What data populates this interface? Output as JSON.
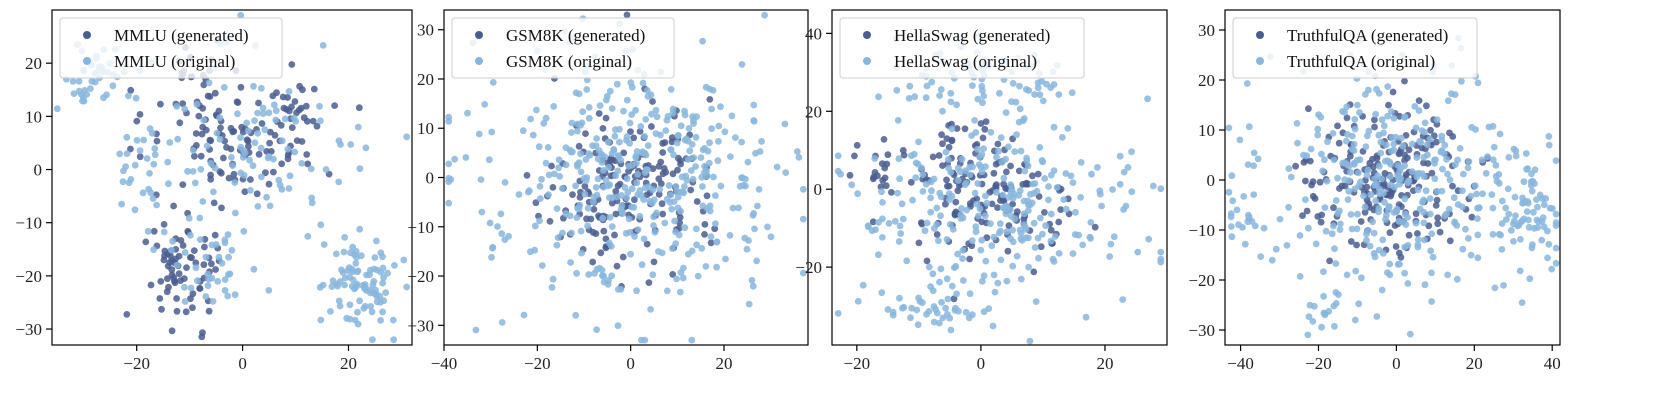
{
  "colors": {
    "generated": "#4a5d8f",
    "original": "#88b6dd",
    "axis": "#000000"
  },
  "chart_data": [
    {
      "type": "scatter",
      "legend": "top-left",
      "xlim": [
        -36,
        32
      ],
      "ylim": [
        -33,
        30
      ],
      "xticks": [
        -20,
        0,
        20
      ],
      "yticks": [
        -30,
        -20,
        -10,
        0,
        10,
        20
      ],
      "xtick_labels": [
        "−20",
        "0",
        "20"
      ],
      "ytick_labels": [
        "−30",
        "−20",
        "−10",
        "0",
        "10",
        "20"
      ],
      "series": [
        {
          "name": "MMLU (generated)",
          "key": "generated",
          "clusters": [
            {
              "cx": -2,
              "cy": 6,
              "sx": 7,
              "sy": 6,
              "n": 95
            },
            {
              "cx": 11,
              "cy": 9,
              "sx": 4,
              "sy": 4,
              "n": 30
            },
            {
              "cx": -10,
              "cy": 16,
              "sx": 3,
              "sy": 4,
              "n": 20
            },
            {
              "cx": -10,
              "cy": -18,
              "sx": 4,
              "sy": 5,
              "n": 55
            },
            {
              "cx": -14,
              "cy": -22,
              "sx": 2,
              "sy": 3,
              "n": 15
            }
          ]
        },
        {
          "name": "MMLU (original)",
          "key": "original",
          "clusters": [
            {
              "cx": -28,
              "cy": 17,
              "sx": 4,
              "sy": 3,
              "n": 45
            },
            {
              "cx": 4,
              "cy": 4,
              "sx": 10,
              "sy": 8,
              "n": 95
            },
            {
              "cx": -20,
              "cy": 0,
              "sx": 4,
              "sy": 4,
              "n": 25
            },
            {
              "cx": -6,
              "cy": -16,
              "sx": 6,
              "sy": 5,
              "n": 45
            },
            {
              "cx": 22,
              "cy": -22,
              "sx": 4,
              "sy": 4,
              "n": 90
            }
          ]
        }
      ]
    },
    {
      "type": "scatter",
      "legend": "top-left",
      "xlim": [
        -40,
        38
      ],
      "ylim": [
        -34,
        34
      ],
      "xticks": [
        -40,
        -20,
        0,
        20
      ],
      "yticks": [
        -30,
        -20,
        -10,
        0,
        10,
        20,
        30
      ],
      "xtick_labels": [
        "−40",
        "−20",
        "0",
        "20"
      ],
      "ytick_labels": [
        "−30",
        "−20",
        "−10",
        "0",
        "10",
        "20",
        "30"
      ],
      "series": [
        {
          "name": "GSM8K (generated)",
          "key": "generated",
          "clusters": [
            {
              "cx": 0,
              "cy": 0,
              "sx": 9,
              "sy": 8,
              "n": 180
            }
          ]
        },
        {
          "name": "GSM8K (original)",
          "key": "original",
          "clusters": [
            {
              "cx": 0,
              "cy": 0,
              "sx": 17,
              "sy": 13,
              "n": 420
            }
          ]
        }
      ]
    },
    {
      "type": "scatter",
      "legend": "top-left",
      "xlim": [
        -24,
        30
      ],
      "ylim": [
        -40,
        46
      ],
      "xticks": [
        -20,
        0,
        20
      ],
      "yticks": [
        -20,
        0,
        20,
        40
      ],
      "xtick_labels": [
        "−20",
        "0",
        "20"
      ],
      "ytick_labels": [
        "−20",
        "0",
        "20",
        "40"
      ],
      "series": [
        {
          "name": "HellaSwag (generated)",
          "key": "generated",
          "clusters": [
            {
              "cx": -3,
              "cy": 2,
              "sx": 5,
              "sy": 9,
              "n": 100
            },
            {
              "cx": 8,
              "cy": -5,
              "sx": 5,
              "sy": 5,
              "n": 50
            },
            {
              "cx": -17,
              "cy": 5,
              "sx": 2,
              "sy": 4,
              "n": 18
            }
          ]
        },
        {
          "name": "HellaSwag (original)",
          "key": "original",
          "clusters": [
            {
              "cx": -5,
              "cy": 30,
              "sx": 6,
              "sy": 4,
              "n": 50
            },
            {
              "cx": 10,
              "cy": 27,
              "sx": 3,
              "sy": 3,
              "n": 22
            },
            {
              "cx": 2,
              "cy": -3,
              "sx": 11,
              "sy": 12,
              "n": 270
            },
            {
              "cx": -8,
              "cy": -30,
              "sx": 5,
              "sy": 3,
              "n": 45
            }
          ]
        }
      ]
    },
    {
      "type": "scatter",
      "legend": "top-left",
      "xlim": [
        -44,
        42
      ],
      "ylim": [
        -33,
        34
      ],
      "xticks": [
        -40,
        -20,
        0,
        20,
        40
      ],
      "yticks": [
        -30,
        -20,
        -10,
        0,
        10,
        20,
        30
      ],
      "xtick_labels": [
        "−40",
        "−20",
        "0",
        "20",
        "40"
      ],
      "ytick_labels": [
        "−30",
        "−20",
        "−10",
        "0",
        "10",
        "20",
        "30"
      ],
      "series": [
        {
          "name": "TruthfulQA (generated)",
          "key": "generated",
          "clusters": [
            {
              "cx": -2,
              "cy": 0,
              "sx": 10,
              "sy": 7,
              "n": 200
            }
          ]
        },
        {
          "name": "TruthfulQA (original)",
          "key": "original",
          "clusters": [
            {
              "cx": 0,
              "cy": 0,
              "sx": 16,
              "sy": 11,
              "n": 330
            },
            {
              "cx": 33,
              "cy": -6,
              "sx": 4,
              "sy": 6,
              "n": 70
            },
            {
              "cx": -39,
              "cy": -6,
              "sx": 2,
              "sy": 4,
              "n": 20
            },
            {
              "cx": -20,
              "cy": -27,
              "sx": 3,
              "sy": 3,
              "n": 15
            }
          ]
        }
      ]
    }
  ]
}
